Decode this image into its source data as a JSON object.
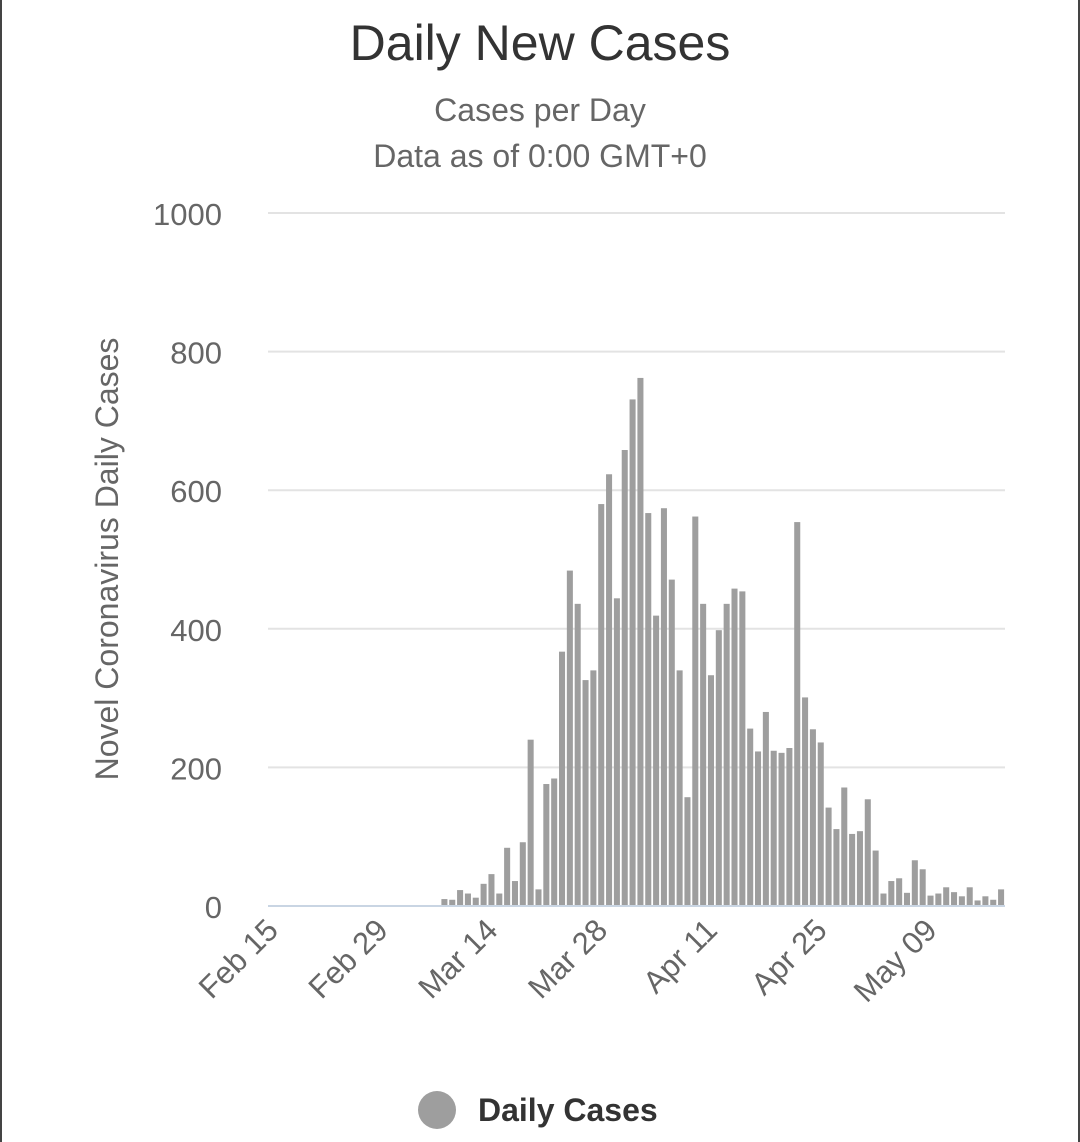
{
  "title": "Daily New Cases",
  "subtitle_lines": [
    "Cases per Day",
    "Data as of 0:00 GMT+0"
  ],
  "chart_data": {
    "type": "bar",
    "title": "Daily New Cases",
    "subtitle": "Cases per Day / Data as of 0:00 GMT+0",
    "xlabel": "",
    "ylabel": "Novel Coronavirus Daily Cases",
    "ylim": [
      0,
      1000
    ],
    "yticks": [
      0,
      200,
      400,
      600,
      800,
      1000
    ],
    "xtick_labels": [
      "Feb 15",
      "Feb 29",
      "Mar 14",
      "Mar 28",
      "Apr 11",
      "Apr 25",
      "May 09"
    ],
    "grid": true,
    "legend_position": "bottom-center",
    "categories": [
      "Feb 15",
      "Feb 16",
      "Feb 17",
      "Feb 18",
      "Feb 19",
      "Feb 20",
      "Feb 21",
      "Feb 22",
      "Feb 23",
      "Feb 24",
      "Feb 25",
      "Feb 26",
      "Feb 27",
      "Feb 28",
      "Feb 29",
      "Mar 01",
      "Mar 02",
      "Mar 03",
      "Mar 04",
      "Mar 05",
      "Mar 06",
      "Mar 07",
      "Mar 08",
      "Mar 09",
      "Mar 10",
      "Mar 11",
      "Mar 12",
      "Mar 13",
      "Mar 14",
      "Mar 15",
      "Mar 16",
      "Mar 17",
      "Mar 18",
      "Mar 19",
      "Mar 20",
      "Mar 21",
      "Mar 22",
      "Mar 23",
      "Mar 24",
      "Mar 25",
      "Mar 26",
      "Mar 27",
      "Mar 28",
      "Mar 29",
      "Mar 30",
      "Mar 31",
      "Apr 01",
      "Apr 02",
      "Apr 03",
      "Apr 04",
      "Apr 05",
      "Apr 06",
      "Apr 07",
      "Apr 08",
      "Apr 09",
      "Apr 10",
      "Apr 11",
      "Apr 12",
      "Apr 13",
      "Apr 14",
      "Apr 15",
      "Apr 16",
      "Apr 17",
      "Apr 18",
      "Apr 19",
      "Apr 20",
      "Apr 21",
      "Apr 22",
      "Apr 23",
      "Apr 24",
      "Apr 25",
      "Apr 26",
      "Apr 27",
      "Apr 28",
      "Apr 29",
      "Apr 30",
      "May 01",
      "May 02",
      "May 03",
      "May 04",
      "May 05",
      "May 06",
      "May 07",
      "May 08",
      "May 09",
      "May 10",
      "May 11",
      "May 12",
      "May 13",
      "May 14",
      "May 15",
      "May 16",
      "May 17",
      "May 18"
    ],
    "series": [
      {
        "name": "Daily Cases",
        "color": "#9e9e9e",
        "values": [
          0,
          0,
          0,
          0,
          0,
          0,
          0,
          0,
          0,
          0,
          0,
          0,
          0,
          0,
          0,
          0,
          0,
          0,
          0,
          0,
          0,
          0,
          10,
          9,
          23,
          18,
          12,
          32,
          46,
          18,
          84,
          36,
          92,
          240,
          24,
          176,
          184,
          367,
          484,
          436,
          326,
          340,
          580,
          623,
          444,
          658,
          731,
          762,
          567,
          419,
          574,
          471,
          340,
          157,
          562,
          436,
          333,
          398,
          436,
          458,
          454,
          256,
          223,
          280,
          224,
          221,
          228,
          554,
          301,
          255,
          236,
          142,
          111,
          171,
          104,
          108,
          154,
          80,
          18,
          36,
          40,
          19,
          66,
          53,
          15,
          18,
          27,
          20,
          14,
          27,
          8,
          14,
          9,
          24
        ]
      }
    ]
  },
  "legend": {
    "label": "Daily Cases",
    "color": "#9e9e9e"
  }
}
